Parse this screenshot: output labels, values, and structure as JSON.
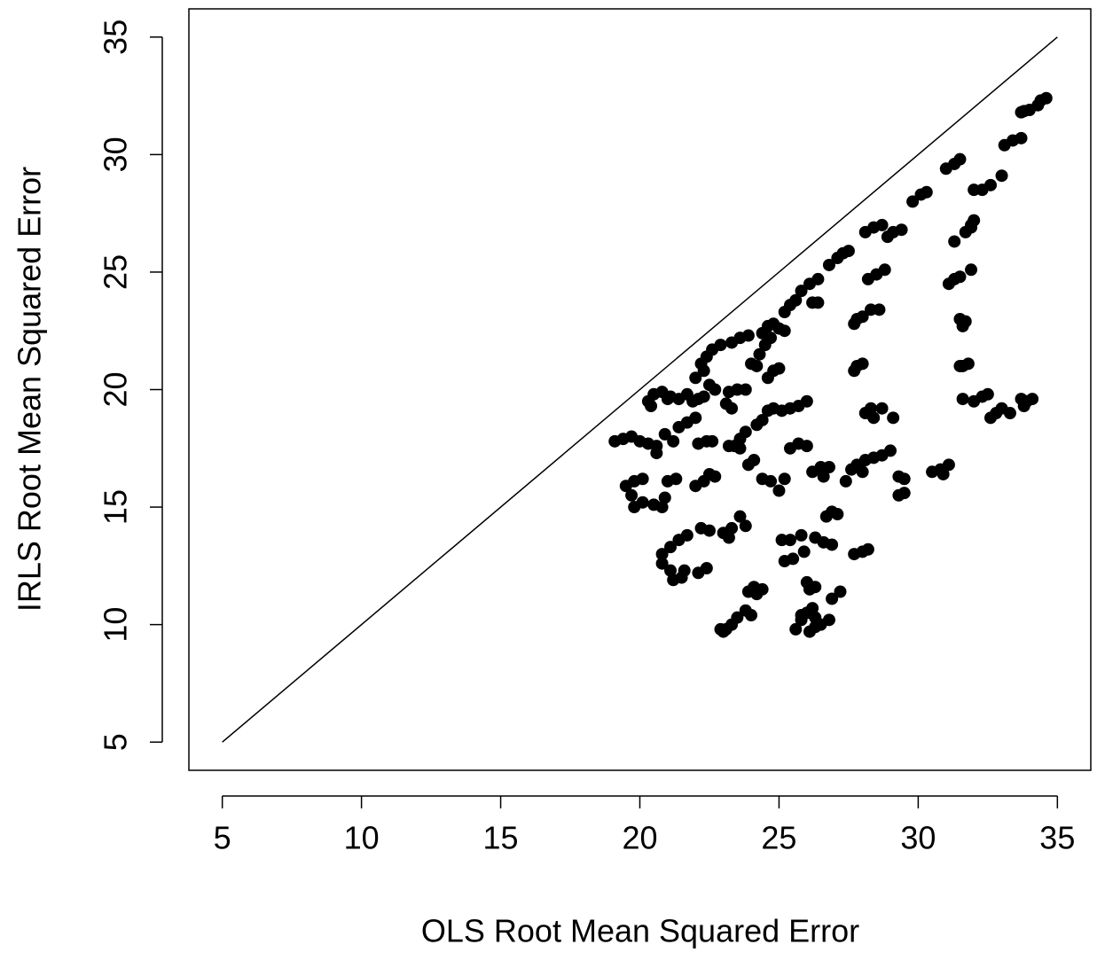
{
  "chart_data": {
    "type": "scatter",
    "xlabel": "OLS Root Mean Squared Error",
    "ylabel": "IRLS Root Mean Squared Error",
    "xlim": [
      3.8,
      36.2
    ],
    "ylim": [
      3.8,
      36.2
    ],
    "xticks": [
      5,
      10,
      15,
      20,
      25,
      30,
      35
    ],
    "yticks": [
      5,
      10,
      15,
      20,
      25,
      30,
      35
    ],
    "color": "#000000",
    "reference_line": {
      "x": [
        5,
        35
      ],
      "y": [
        5,
        35
      ]
    },
    "x": [
      33.7,
      34,
      34.3,
      34.6,
      34.4,
      33.8,
      33.1,
      33.4,
      33.7,
      33,
      31,
      31.3,
      31.5,
      32,
      32.3,
      32.6,
      29.8,
      30.1,
      30.3,
      31.9,
      32,
      31.7,
      31.9,
      31.3,
      28.1,
      28.4,
      28.7,
      28.9,
      29.1,
      29.4,
      27.1,
      27.3,
      27.5,
      26.8,
      31.1,
      31.3,
      31.5,
      31.9,
      28.2,
      28.5,
      28.8,
      28.6,
      28.3,
      25.2,
      25.4,
      25.6,
      25.8,
      26.1,
      26.4,
      26.2,
      26.4,
      24.4,
      24.6,
      24.8,
      25,
      24.7,
      24.5,
      24.3,
      24,
      24.2,
      25.2,
      22.2,
      22.4,
      22.6,
      22.9,
      23.3,
      23.6,
      23.9,
      22.3,
      22,
      31.5,
      31.6,
      31.7,
      31.6,
      31.8,
      31.5,
      27.8,
      28,
      27.7,
      27.8,
      28,
      27.7,
      24.8,
      25,
      24.6,
      22.5,
      22.7,
      22.3,
      20.3,
      20.5,
      20.8,
      21.1,
      21.4,
      21.7,
      20.4,
      21,
      21.9,
      22.1,
      23.2,
      23.5,
      23.8,
      23.1,
      23.3,
      25.4,
      25.7,
      26,
      25.1,
      24.8,
      24.6,
      24.4,
      24.2,
      23.8,
      23.6,
      23.4,
      23.6,
      31.6,
      32,
      32.3,
      32.5,
      32.8,
      33,
      33.3,
      32.6,
      33.7,
      33.9,
      34.1,
      33.8,
      28.1,
      28.4,
      28.7,
      29.1,
      28.3,
      27.6,
      27.8,
      28.1,
      28.4,
      28.7,
      29,
      27.4,
      28,
      29.3,
      29.5,
      29.3,
      29.5,
      30.5,
      30.8,
      31.1,
      30.9,
      19.1,
      19.4,
      19.7,
      20,
      20.3,
      20.6,
      20.9,
      21.2,
      20.6,
      21.4,
      21.7,
      22,
      22.1,
      22.4,
      22.6,
      19.5,
      19.8,
      20.1,
      19.7,
      19.8,
      20.1,
      20.5,
      20.8,
      20.9,
      21,
      21.3,
      22,
      22.3,
      22.5,
      22.7,
      23.2,
      23.5,
      24.1,
      23.9,
      24.4,
      24.7,
      25,
      25.2,
      25.4,
      25.7,
      26,
      26.2,
      26.5,
      26.8,
      26.6,
      26.7,
      26.9,
      27.1,
      26.3,
      26.6,
      26.9,
      25.4,
      25.1,
      25.2,
      25.5,
      25.9,
      25.8,
      27.7,
      28,
      28.2,
      22.2,
      22.5,
      23,
      23.3,
      23.6,
      23.8,
      23.2,
      20.8,
      21.1,
      21.4,
      21.7,
      20.8,
      21.1,
      21.2,
      21.5,
      22.1,
      22.4,
      21.6,
      23.9,
      24.1,
      24.4,
      24.2,
      22.9,
      23.1,
      23.3,
      23.5,
      23.8,
      24,
      23,
      25.6,
      25.8,
      26,
      26.2,
      26.3,
      26.1,
      26.5,
      26.8,
      26,
      26.3,
      26.1,
      26.9,
      27.2,
      25.8,
      26.3
    ],
    "values": [
      31.8,
      31.9,
      32.1,
      32.4,
      32.3,
      31.85,
      30.4,
      30.6,
      30.7,
      29.1,
      29.4,
      29.6,
      29.8,
      28.5,
      28.5,
      28.7,
      28,
      28.3,
      28.4,
      27,
      27.2,
      26.7,
      26.9,
      26.3,
      26.7,
      26.9,
      27,
      26.5,
      26.7,
      26.8,
      25.6,
      25.8,
      25.9,
      25.3,
      24.5,
      24.7,
      24.8,
      25.1,
      24.7,
      24.9,
      25.1,
      23.4,
      23.4,
      23.3,
      23.6,
      23.8,
      24.2,
      24.5,
      24.7,
      23.7,
      23.7,
      22.4,
      22.7,
      22.8,
      22.6,
      22.2,
      21.9,
      21.5,
      21.1,
      21,
      22.5,
      21.1,
      21.4,
      21.7,
      21.9,
      22,
      22.2,
      22.3,
      20.8,
      20.5,
      23,
      22.7,
      22.9,
      21,
      21.1,
      21,
      23,
      23.1,
      22.8,
      21,
      21.1,
      20.8,
      20.8,
      20.9,
      20.5,
      20.2,
      20,
      19.7,
      19.5,
      19.8,
      19.9,
      19.7,
      19.6,
      19.8,
      19.3,
      19.6,
      19.5,
      19.6,
      19.9,
      20,
      20,
      19.4,
      19.2,
      19.2,
      19.3,
      19.5,
      19.1,
      19.2,
      19.1,
      18.7,
      18.5,
      18.2,
      17.9,
      17.6,
      17.5,
      19.6,
      19.5,
      19.7,
      19.8,
      19,
      19.2,
      19,
      18.8,
      19.6,
      19.5,
      19.6,
      19.3,
      19,
      18.8,
      19.2,
      18.8,
      19.2,
      16.6,
      16.8,
      17,
      17.1,
      17.2,
      17.4,
      16.1,
      16.5,
      16.3,
      16.2,
      15.5,
      15.6,
      16.5,
      16.6,
      16.8,
      16.4,
      17.8,
      17.9,
      18,
      17.8,
      17.7,
      17.6,
      18.1,
      17.8,
      17.3,
      18.4,
      18.6,
      18.8,
      17.7,
      17.8,
      17.8,
      15.9,
      16.1,
      16.2,
      15.5,
      15,
      15.2,
      15.1,
      15,
      15.4,
      16.1,
      16.2,
      15.9,
      16.1,
      16.4,
      16.3,
      17.6,
      17.6,
      17,
      16.8,
      16.2,
      16.1,
      15.7,
      16.2,
      17.5,
      17.7,
      17.6,
      16.5,
      16.7,
      16.7,
      16.3,
      14.6,
      14.8,
      14.7,
      13.7,
      13.5,
      13.4,
      13.6,
      13.6,
      12.7,
      12.8,
      13.1,
      13.8,
      13,
      13.1,
      13.2,
      14.1,
      14,
      13.9,
      14.1,
      14.6,
      14.2,
      13.7,
      13,
      13.3,
      13.6,
      13.8,
      12.6,
      12.3,
      11.9,
      12,
      12.2,
      12.4,
      12.3,
      11.4,
      11.6,
      11.5,
      11.3,
      9.8,
      9.8,
      10,
      10.3,
      10.6,
      10.4,
      9.7,
      9.8,
      10.2,
      10.5,
      10.7,
      9.9,
      9.7,
      10,
      10.2,
      11.8,
      11.6,
      11.5,
      11.1,
      11.4,
      10.4,
      10.3
    ]
  }
}
